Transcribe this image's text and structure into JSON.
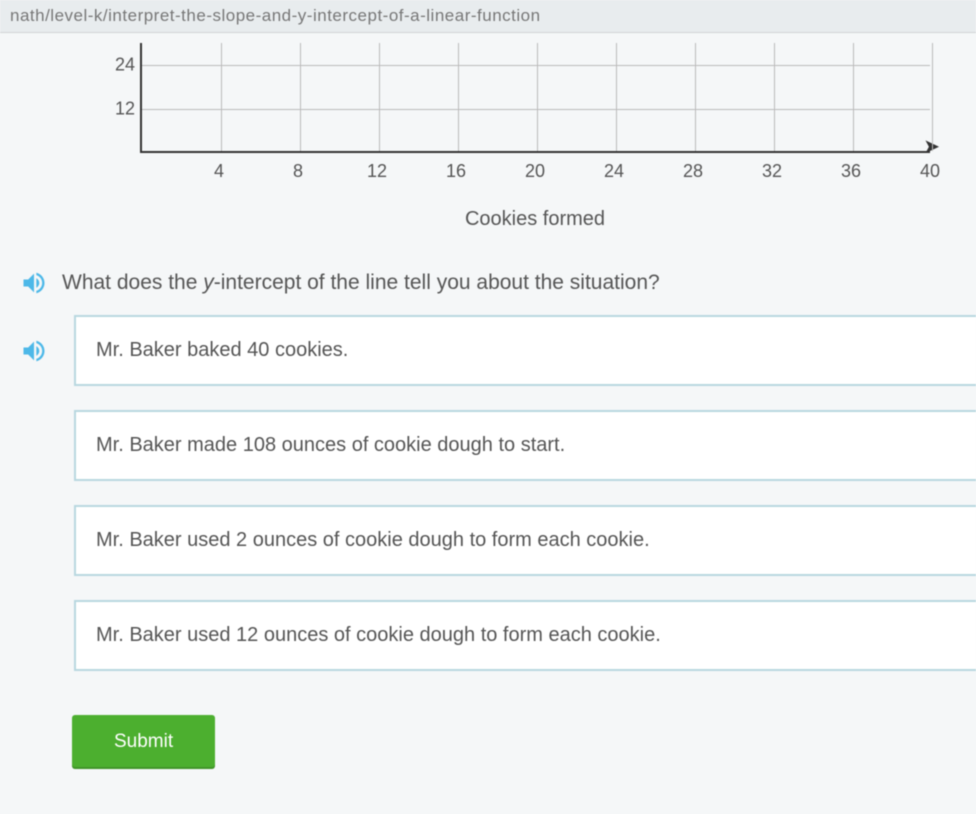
{
  "breadcrumb": "nath/level-k/interpret-the-slope-and-y-intercept-of-a-linear-function",
  "chart": {
    "type": "line-grid",
    "y_ticks": [
      {
        "v": 24,
        "label": "24"
      },
      {
        "v": 12,
        "label": "12"
      }
    ],
    "y_max": 30,
    "x_ticks": [
      {
        "v": 4,
        "label": "4"
      },
      {
        "v": 8,
        "label": "8"
      },
      {
        "v": 12,
        "label": "12"
      },
      {
        "v": 16,
        "label": "16"
      },
      {
        "v": 20,
        "label": "20"
      },
      {
        "v": 24,
        "label": "24"
      },
      {
        "v": 28,
        "label": "28"
      },
      {
        "v": 32,
        "label": "32"
      },
      {
        "v": 36,
        "label": "36"
      },
      {
        "v": 40,
        "label": "40"
      }
    ],
    "x_max": 40,
    "xlabel": "Cookies formed",
    "grid_color": "#bbbbbb",
    "axis_color": "#333333",
    "background_color": "#f5f7f8",
    "label_color": "#555555",
    "label_fontsize": 18,
    "xlabel_fontsize": 20
  },
  "question_prefix": "What does the ",
  "question_var": "y",
  "question_suffix": "-intercept of the line tell you about the situation?",
  "choices": [
    "Mr. Baker baked 40 cookies.",
    "Mr. Baker made 108 ounces of cookie dough to start.",
    "Mr. Baker used 2 ounces of cookie dough to form each cookie.",
    "Mr. Baker used 12 ounces of cookie dough to form each cookie."
  ],
  "submit_label": "Submit",
  "colors": {
    "speaker_icon": "#4db8e8",
    "choice_border": "#b8d8e0",
    "submit_bg": "#4caf2f"
  }
}
